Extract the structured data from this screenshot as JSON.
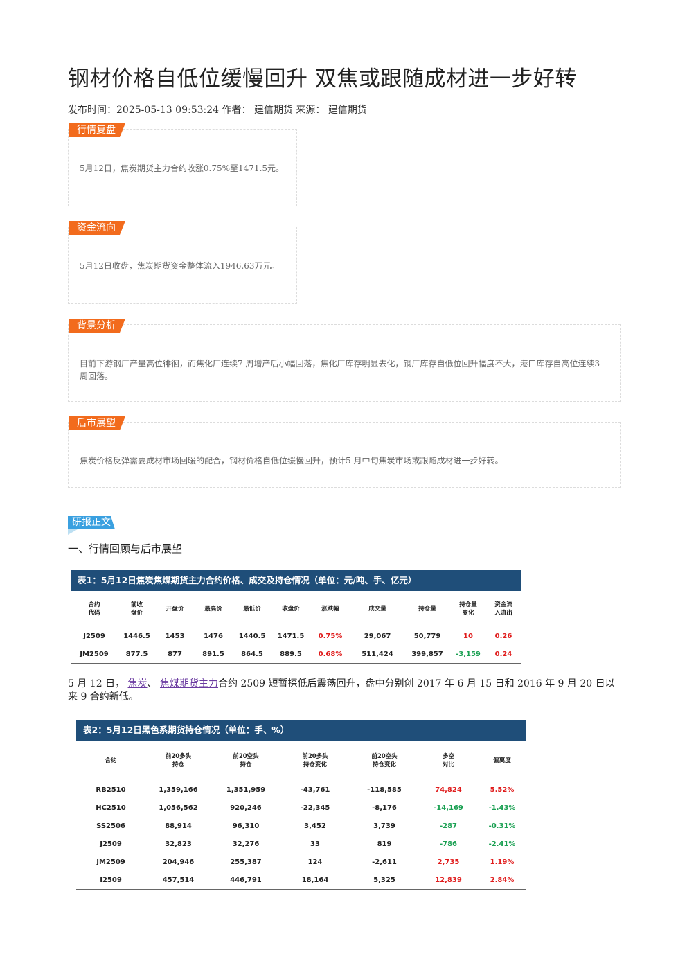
{
  "article": {
    "title": "钢材价格自低位缓慢回升 双焦或跟随成材进一步好转",
    "meta": "发布时间：2025-05-13 09:53:24 作者： 建信期货 来源： 建信期货"
  },
  "sections": {
    "market_review": {
      "tag": "行情复盘",
      "text": "5月12日，焦炭期货主力合约收涨0.75%至1471.5元。"
    },
    "fund_flow": {
      "tag": "资金流向",
      "text": "5月12日收盘，焦炭期货资金整体流入1946.63万元。"
    },
    "background": {
      "tag": "背景分析",
      "text": "目前下游钢厂产量高位徘徊，而焦化厂连续7 周增产后小幅回落，焦化厂库存明显去化，钢厂库存自低位回升幅度不大，港口库存自高位连续3周回落。"
    },
    "outlook": {
      "tag": "后市展望",
      "text": "焦炭价格反弹需要成材市场回暖的配合，钢材价格自低位缓慢回升，预计5 月中旬焦炭市场或跟随成材进一步好转。"
    }
  },
  "report": {
    "tag": "研报正文",
    "heading": "一、行情回顾与后市展望",
    "para_prefix": "5 月 12 日，",
    "link1": "焦炭",
    "sep": "、",
    "link2": "焦煤期货主力",
    "para_rest": "合约 2509 短暂探低后震荡回升，盘中分别创 2017 年 6 月 15 日和 2016 年 9 月 20 日以来 9 合约新低。"
  },
  "table1": {
    "title": "表1：5月12日焦炭焦煤期货主力合约价格、成交及持仓情况（单位：元/吨、手、亿元）",
    "headers": [
      "合约\n代码",
      "前收\n盘价",
      "开盘价",
      "最高价",
      "最低价",
      "收盘价",
      "涨跌幅",
      "成交量",
      "持仓量",
      "持仓量\n变化",
      "资金流\n入流出"
    ],
    "rows": [
      [
        "J2509",
        "1446.5",
        "1453",
        "1476",
        "1440.5",
        "1471.5",
        "0.75%",
        "29,067",
        "50,779",
        "10",
        "0.26"
      ],
      [
        "JM2509",
        "877.5",
        "877",
        "891.5",
        "864.5",
        "889.5",
        "0.68%",
        "511,424",
        "399,857",
        "-3,159",
        "0.24"
      ]
    ],
    "colors": [
      [
        "",
        "",
        "",
        "",
        "",
        "",
        "red",
        "",
        "",
        "red",
        "red"
      ],
      [
        "",
        "",
        "",
        "",
        "",
        "",
        "red",
        "",
        "",
        "green",
        "red"
      ]
    ]
  },
  "table2": {
    "title": "表2：5月12日黑色系期货持仓情况（单位：手、%）",
    "headers": [
      "合约",
      "前20多头\n持仓",
      "前20空头\n持仓",
      "前20多头\n持仓变化",
      "前20空头\n持仓变化",
      "多空\n对比",
      "偏离度"
    ],
    "rows": [
      [
        "RB2510",
        "1,359,166",
        "1,351,959",
        "-43,761",
        "-118,585",
        "74,824",
        "5.52%"
      ],
      [
        "HC2510",
        "1,056,562",
        "920,246",
        "-22,345",
        "-8,176",
        "-14,169",
        "-1.43%"
      ],
      [
        "SS2506",
        "88,914",
        "96,310",
        "3,452",
        "3,739",
        "-287",
        "-0.31%"
      ],
      [
        "J2509",
        "32,823",
        "32,276",
        "33",
        "819",
        "-786",
        "-2.41%"
      ],
      [
        "JM2509",
        "204,946",
        "255,387",
        "124",
        "-2,611",
        "2,735",
        "1.19%"
      ],
      [
        "I2509",
        "457,514",
        "446,791",
        "18,164",
        "5,325",
        "12,839",
        "2.84%"
      ]
    ],
    "colors": [
      [
        "",
        "",
        "",
        "",
        "",
        "red",
        "red"
      ],
      [
        "",
        "",
        "",
        "",
        "",
        "green",
        "green"
      ],
      [
        "",
        "",
        "",
        "",
        "",
        "green",
        "green"
      ],
      [
        "",
        "",
        "",
        "",
        "",
        "green",
        "green"
      ],
      [
        "",
        "",
        "",
        "",
        "",
        "red",
        "red"
      ],
      [
        "",
        "",
        "",
        "",
        "",
        "red",
        "red"
      ]
    ]
  }
}
